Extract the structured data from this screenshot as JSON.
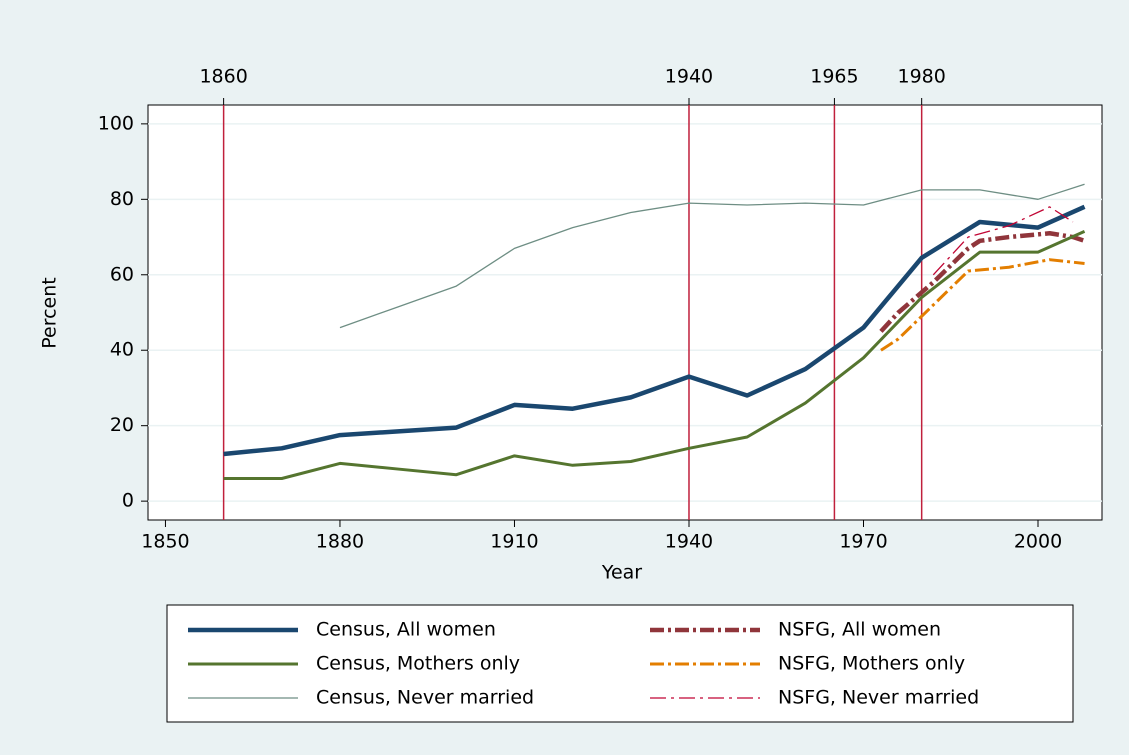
{
  "chart_data": {
    "type": "line",
    "xlabel": "Year",
    "ylabel": "Percent",
    "xlim": [
      1847,
      2011
    ],
    "ylim": [
      -5,
      105
    ],
    "xticks": [
      1850,
      1880,
      1910,
      1940,
      1970,
      2000
    ],
    "yticks": [
      0,
      20,
      40,
      60,
      80,
      100
    ],
    "top_ticks": [
      1860,
      1940,
      1965,
      1980
    ],
    "reference_line_color": "#c0203c",
    "grid": true,
    "series": [
      {
        "name": "Census, All women",
        "color": "#1a476f",
        "line_weight": "thick",
        "style": "solid",
        "x": [
          1860,
          1870,
          1880,
          1890,
          1900,
          1910,
          1920,
          1930,
          1940,
          1950,
          1960,
          1970,
          1980,
          1990,
          2000,
          2008
        ],
        "values": [
          12.5,
          14,
          17.5,
          18.5,
          19.5,
          25.5,
          24.5,
          27.5,
          33,
          28,
          35,
          46,
          64.5,
          74,
          72.5,
          78
        ]
      },
      {
        "name": "NSFG, All women",
        "color": "#90353b",
        "line_weight": "thick",
        "style": "dashdot",
        "x": [
          1973,
          1976,
          1982,
          1988,
          1990,
          1995,
          2002,
          2006,
          2008
        ],
        "values": [
          45,
          50,
          58,
          67,
          69,
          70,
          71,
          70,
          69
        ]
      },
      {
        "name": "Census, Mothers only",
        "color": "#55752f",
        "line_weight": "medium",
        "style": "solid",
        "x": [
          1860,
          1870,
          1880,
          1890,
          1900,
          1910,
          1920,
          1930,
          1940,
          1950,
          1960,
          1970,
          1980,
          1990,
          2000,
          2008
        ],
        "values": [
          6,
          6,
          10,
          8.5,
          7,
          12,
          9.5,
          10.5,
          14,
          17,
          26,
          38,
          54,
          66,
          66,
          71.5
        ]
      },
      {
        "name": "NSFG, Mothers only",
        "color": "#e37e00",
        "line_weight": "medium",
        "style": "dashdot",
        "x": [
          1973,
          1976,
          1982,
          1988,
          1995,
          2002,
          2008
        ],
        "values": [
          40,
          43,
          52,
          61,
          62,
          64,
          63
        ]
      },
      {
        "name": "Census, Never married",
        "color": "#6e8e84",
        "line_weight": "thin",
        "style": "solid",
        "x": [
          1880,
          1890,
          1900,
          1910,
          1920,
          1930,
          1940,
          1950,
          1960,
          1970,
          1980,
          1990,
          2000,
          2008
        ],
        "values": [
          46,
          51.5,
          57,
          67,
          72.5,
          76.5,
          79,
          78.5,
          79,
          78.5,
          82.5,
          82.5,
          80,
          84
        ]
      },
      {
        "name": "NSFG, Never married",
        "color": "#c10534",
        "line_weight": "thin",
        "style": "longdashdot",
        "x": [
          1982,
          1988,
          1995,
          2002,
          2006
        ],
        "values": [
          60,
          70,
          73,
          78,
          74
        ]
      }
    ]
  }
}
